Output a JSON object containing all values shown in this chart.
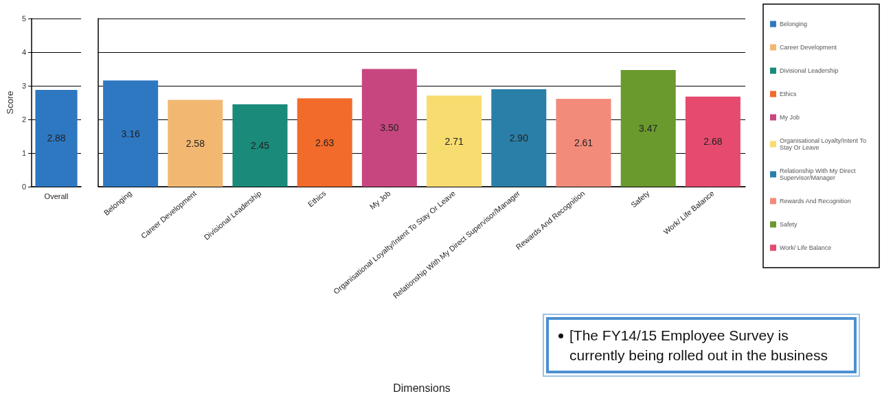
{
  "chart_data": [
    {
      "type": "bar",
      "ylabel": "Score",
      "categories": [
        "Overall"
      ],
      "values": [
        2.88
      ],
      "value_labels": [
        "2.88"
      ],
      "colors": [
        "#2e78c2"
      ],
      "ylim": [
        0,
        5
      ],
      "yticks": [
        0,
        1,
        2,
        3,
        4,
        5
      ],
      "grid": "y"
    },
    {
      "type": "bar",
      "xlabel": "Dimensions",
      "categories": [
        "Belonging",
        "Career Development",
        "Divisional Leadership",
        "Ethics",
        "My Job",
        "Organisational Loyalty/Intent To Stay Or Leave",
        "Relationship With My Direct Supervisor/Manager",
        "Rewards And Recognition",
        "Safety",
        "Work/ Life Balance"
      ],
      "series": [
        {
          "name": "Belonging",
          "color": "#2e78c2",
          "values": [
            3.16,
            null,
            null,
            null,
            null,
            null,
            null,
            null,
            null,
            null
          ],
          "value_labels": [
            "3.16",
            null,
            null,
            null,
            null,
            null,
            null,
            null,
            null,
            null
          ]
        },
        {
          "name": "Career Development",
          "color": "#f2b872",
          "values": [
            null,
            2.58,
            null,
            null,
            null,
            null,
            null,
            null,
            null,
            null
          ],
          "value_labels": [
            null,
            "2.58",
            null,
            null,
            null,
            null,
            null,
            null,
            null,
            null
          ]
        },
        {
          "name": "Divisional Leadership",
          "color": "#1a8a7a",
          "values": [
            null,
            null,
            2.45,
            null,
            null,
            null,
            null,
            null,
            null,
            null
          ],
          "value_labels": [
            null,
            null,
            "2.45",
            null,
            null,
            null,
            null,
            null,
            null,
            null
          ]
        },
        {
          "name": "Ethics",
          "color": "#f26b2a",
          "values": [
            null,
            null,
            null,
            2.63,
            null,
            null,
            null,
            null,
            null,
            null
          ],
          "value_labels": [
            null,
            null,
            null,
            "2.63",
            null,
            null,
            null,
            null,
            null,
            null
          ]
        },
        {
          "name": "My Job",
          "color": "#c8467f",
          "values": [
            null,
            null,
            null,
            null,
            3.5,
            null,
            null,
            null,
            null,
            null
          ],
          "value_labels": [
            null,
            null,
            null,
            null,
            "3.50",
            null,
            null,
            null,
            null,
            null
          ]
        },
        {
          "name": "Organisational Loyalty/Intent To Stay Or Leave",
          "color": "#f7dc6f",
          "values": [
            null,
            null,
            null,
            null,
            null,
            2.71,
            null,
            null,
            null,
            null
          ],
          "value_labels": [
            null,
            null,
            null,
            null,
            null,
            "2.71",
            null,
            null,
            null,
            null
          ]
        },
        {
          "name": "Relationship With My Direct Supervisor/Manager",
          "color": "#2a7fa8",
          "values": [
            null,
            null,
            null,
            null,
            null,
            null,
            2.9,
            null,
            null,
            null
          ],
          "value_labels": [
            null,
            null,
            null,
            null,
            null,
            null,
            "2.90",
            null,
            null,
            null
          ]
        },
        {
          "name": "Rewards And Recognition",
          "color": "#f38b7a",
          "values": [
            null,
            null,
            null,
            null,
            null,
            null,
            null,
            2.61,
            null,
            null
          ],
          "value_labels": [
            null,
            null,
            null,
            null,
            null,
            null,
            null,
            "2.61",
            null,
            null
          ]
        },
        {
          "name": "Safety",
          "color": "#6a9a2e",
          "values": [
            null,
            null,
            null,
            null,
            null,
            null,
            null,
            null,
            3.47,
            null
          ],
          "value_labels": [
            null,
            null,
            null,
            null,
            null,
            null,
            null,
            null,
            "3.47",
            null
          ]
        },
        {
          "name": "Work/ Life Balance",
          "color": "#e64b6f",
          "values": [
            null,
            null,
            null,
            null,
            null,
            null,
            null,
            null,
            null,
            2.68
          ],
          "value_labels": [
            null,
            null,
            null,
            null,
            null,
            null,
            null,
            null,
            null,
            "2.68"
          ]
        }
      ],
      "ylim": [
        0,
        5
      ],
      "yticks": [
        0,
        1,
        2,
        3,
        4,
        5
      ],
      "grid": "y",
      "legend": "right",
      "tick_labels": "x",
      "annotations": [
        "[The FY14/15 Employee Survey is currently being rolled out in the business"
      ]
    }
  ]
}
